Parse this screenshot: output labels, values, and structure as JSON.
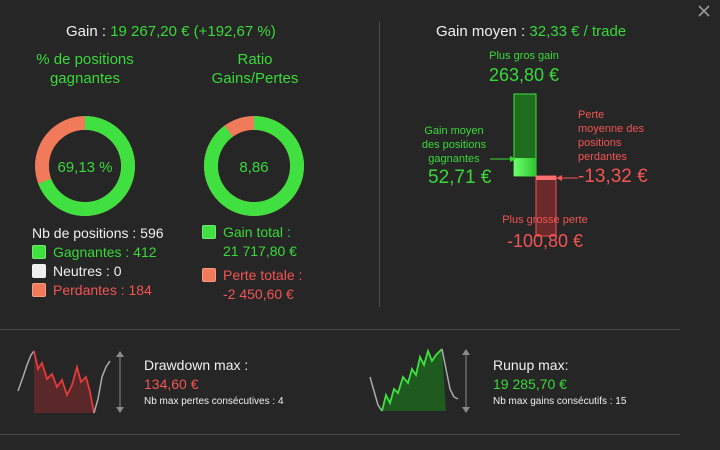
{
  "summary": {
    "gain_label": "Gain :",
    "gain_value": "19 267,20 € (+192,67 %)",
    "pct_title": "% de positions gagnantes",
    "pct_value": "69,13 %",
    "pct_fraction": 0.6913,
    "ratio_title": "Ratio Gains/Pertes",
    "ratio_value": "8,86",
    "ratio_fraction": 0.8986,
    "nb_positions": "Nb de positions : 596",
    "gagnantes": "Gagnantes : 412",
    "neutres": "Neutres : 0",
    "perdantes": "Perdantes : 184",
    "gain_total_label": "Gain total :",
    "gain_total_value": "21 717,80 €",
    "perte_totale_label": "Perte totale :",
    "perte_totale_value": "-2 450,60 €"
  },
  "average": {
    "title_label": "Gain moyen :",
    "title_value": "32,33 € / trade",
    "plus_gros_gain_label": "Plus gros gain",
    "plus_gros_gain_value": "263,80 €",
    "gain_moyen_label_l1": "Gain moyen",
    "gain_moyen_label_l2": "des positions",
    "gain_moyen_label_l3": "gagnantes",
    "gain_moyen_value": "52,71 €",
    "perte_moyenne_l1": "Perte",
    "perte_moyenne_l2": "moyenne des",
    "perte_moyenne_l3": "positions",
    "perte_moyenne_l4": "perdantes",
    "perte_moyenne_value": "-13,32 €",
    "plus_grosse_perte_label": "Plus grosse perte",
    "plus_grosse_perte_value": "-100,80 €"
  },
  "drawdown": {
    "title": "Drawdown max :",
    "value": "134,60 €",
    "sub": "Nb max pertes consécutives : 4"
  },
  "runup": {
    "title": "Runup max:",
    "value": "19 285,70 €",
    "sub": "Nb max gains consécutifs : 15"
  },
  "colors": {
    "green": "#39d939",
    "red": "#f25454",
    "background": "#262626"
  },
  "icons": {
    "close": "close-icon"
  }
}
